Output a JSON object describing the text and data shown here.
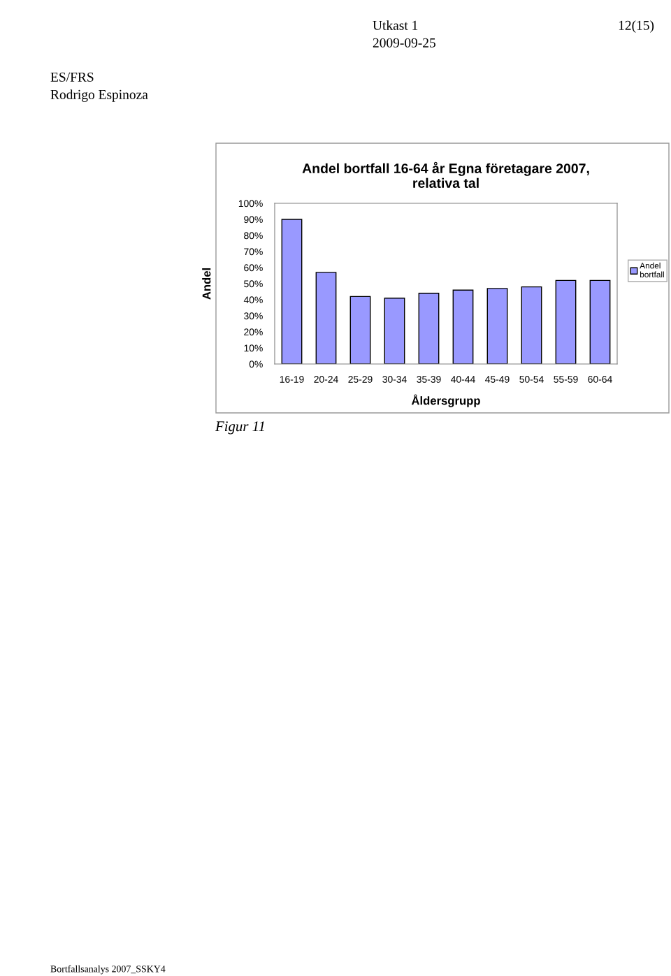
{
  "chart_data": {
    "type": "bar",
    "title": "Andel bortfall 16-64 år Egna företagare 2007,\nrelativa tal",
    "xlabel": "Åldersgrupp",
    "ylabel": "Andel",
    "categories": [
      "16-19",
      "20-24",
      "25-29",
      "30-34",
      "35-39",
      "40-44",
      "45-49",
      "50-54",
      "55-59",
      "60-64"
    ],
    "series": [
      {
        "name": "Andel bortfall",
        "color": "#9999ff",
        "values": [
          90,
          57,
          42,
          41,
          44,
          46,
          47,
          48,
          52,
          52
        ]
      }
    ],
    "ylim": [
      0,
      100
    ],
    "yticks": [
      {
        "value": 0,
        "label": "0%"
      },
      {
        "value": 10,
        "label": "10%"
      },
      {
        "value": 20,
        "label": "20%"
      },
      {
        "value": 30,
        "label": "30%"
      },
      {
        "value": 40,
        "label": "40%"
      },
      {
        "value": 50,
        "label": "50%"
      },
      {
        "value": 60,
        "label": "60%"
      },
      {
        "value": 70,
        "label": "70%"
      },
      {
        "value": 80,
        "label": "80%"
      },
      {
        "value": 90,
        "label": "90%"
      },
      {
        "value": 100,
        "label": "100%"
      }
    ],
    "legend": "right",
    "grid": false,
    "annotations": [
      "Utkast 1",
      "12(15)",
      "2009-09-25",
      "ES/FRS",
      "Rodrigo Espinoza",
      "Figur 11",
      "Bortfallsanalys 2007_SSKY4"
    ]
  }
}
